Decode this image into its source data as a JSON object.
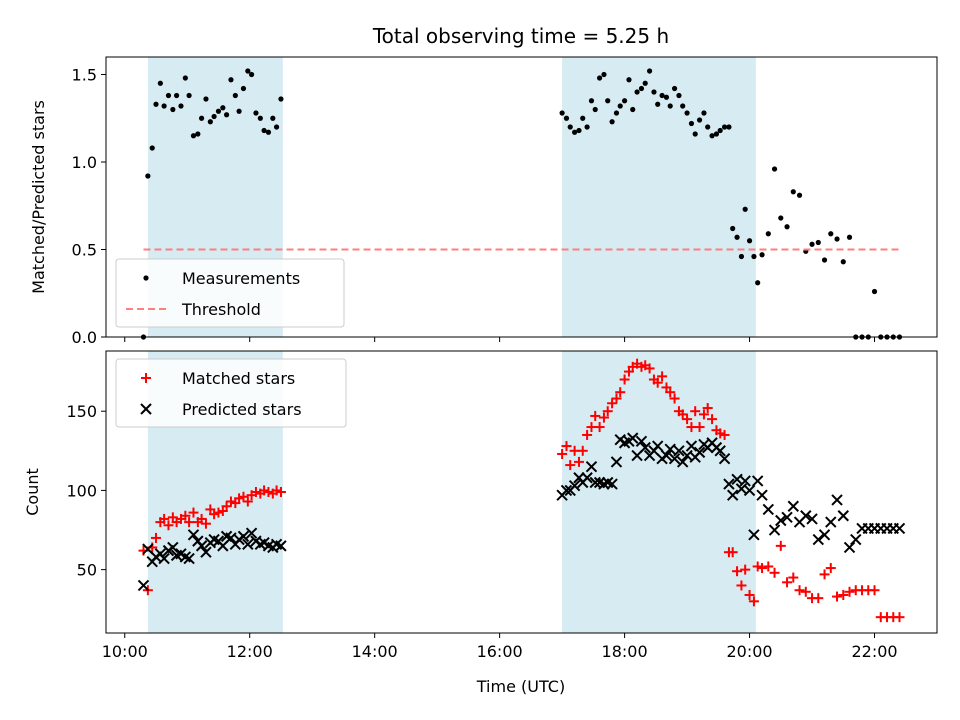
{
  "chart_data": {
    "type": "scatter",
    "title": "Total observing time = 5.25 h",
    "xlabel": "Time (UTC)",
    "xlim": [
      9.7,
      23.0
    ],
    "x_ticks": [
      10,
      12,
      14,
      16,
      18,
      20,
      22
    ],
    "x_tick_labels": [
      "10:00",
      "12:00",
      "14:00",
      "16:00",
      "18:00",
      "20:00",
      "22:00"
    ],
    "shaded_intervals": [
      [
        10.37,
        12.53
      ],
      [
        17.0,
        20.1
      ]
    ],
    "shade_color": "#add8e6",
    "panels": [
      {
        "name": "ratio",
        "ylabel": "Matched/Predicted stars",
        "ylim": [
          0.0,
          1.6
        ],
        "y_ticks": [
          0.0,
          0.5,
          1.0,
          1.5
        ],
        "y_tick_labels": [
          "0.0",
          "0.5",
          "1.0",
          "1.5"
        ],
        "legend": {
          "location": "lower-left"
        },
        "series": [
          {
            "name": "Measurements",
            "marker": "dot",
            "color": "#000000",
            "x": [
              10.3,
              10.37,
              10.44,
              10.5,
              10.57,
              10.63,
              10.7,
              10.77,
              10.83,
              10.9,
              10.97,
              11.03,
              11.1,
              11.17,
              11.23,
              11.3,
              11.37,
              11.43,
              11.5,
              11.57,
              11.63,
              11.7,
              11.77,
              11.83,
              11.9,
              11.97,
              12.03,
              12.1,
              12.17,
              12.23,
              12.3,
              12.37,
              12.43,
              12.5,
              17.0,
              17.07,
              17.13,
              17.2,
              17.27,
              17.33,
              17.4,
              17.47,
              17.53,
              17.6,
              17.67,
              17.73,
              17.8,
              17.87,
              17.93,
              18.0,
              18.07,
              18.13,
              18.2,
              18.27,
              18.33,
              18.4,
              18.47,
              18.53,
              18.6,
              18.67,
              18.73,
              18.8,
              18.87,
              18.93,
              19.0,
              19.07,
              19.13,
              19.2,
              19.27,
              19.33,
              19.4,
              19.47,
              19.53,
              19.6,
              19.67,
              19.73,
              19.8,
              19.87,
              19.93,
              20.0,
              20.07,
              20.13,
              20.2,
              20.3,
              20.4,
              20.5,
              20.6,
              20.7,
              20.8,
              20.9,
              21.0,
              21.1,
              21.2,
              21.3,
              21.4,
              21.5,
              21.6,
              21.7,
              21.8,
              21.9,
              22.0,
              22.1,
              22.2,
              22.3,
              22.4
            ],
            "y": [
              0.0,
              0.92,
              1.08,
              1.33,
              1.45,
              1.32,
              1.38,
              1.3,
              1.38,
              1.32,
              1.48,
              1.38,
              1.15,
              1.16,
              1.25,
              1.36,
              1.23,
              1.26,
              1.29,
              1.31,
              1.27,
              1.47,
              1.38,
              1.29,
              1.42,
              1.52,
              1.5,
              1.28,
              1.25,
              1.18,
              1.17,
              1.25,
              1.2,
              1.36,
              1.28,
              1.25,
              1.2,
              1.17,
              1.18,
              1.25,
              1.2,
              1.35,
              1.3,
              1.48,
              1.5,
              1.35,
              1.23,
              1.28,
              1.32,
              1.35,
              1.47,
              1.3,
              1.4,
              1.42,
              1.45,
              1.52,
              1.4,
              1.33,
              1.38,
              1.37,
              1.32,
              1.42,
              1.38,
              1.32,
              1.28,
              1.22,
              1.16,
              1.24,
              1.28,
              1.2,
              1.15,
              1.16,
              1.18,
              1.2,
              1.2,
              0.62,
              0.57,
              0.46,
              0.73,
              0.55,
              0.46,
              0.31,
              0.47,
              0.59,
              0.96,
              0.68,
              0.63,
              0.83,
              0.81,
              0.49,
              0.53,
              0.54,
              0.44,
              0.59,
              0.56,
              0.43,
              0.57,
              0.0,
              0.0,
              0.0,
              0.26,
              0.0,
              0.0,
              0.0,
              0.0
            ]
          },
          {
            "name": "Threshold",
            "marker": "dashed-line",
            "color": "#ff7f7f",
            "x": [
              10.3,
              22.4
            ],
            "y": [
              0.5,
              0.5
            ]
          }
        ]
      },
      {
        "name": "counts",
        "ylabel": "Count",
        "ylim": [
          10,
          188
        ],
        "y_ticks": [
          50,
          100,
          150
        ],
        "y_tick_labels": [
          "50",
          "100",
          "150"
        ],
        "legend": {
          "location": "upper-left"
        },
        "series": [
          {
            "name": "Matched stars",
            "marker": "plus",
            "color": "#ff0000",
            "x": [
              10.3,
              10.37,
              10.44,
              10.5,
              10.57,
              10.63,
              10.7,
              10.77,
              10.83,
              10.9,
              10.97,
              11.03,
              11.1,
              11.17,
              11.23,
              11.3,
              11.37,
              11.43,
              11.5,
              11.57,
              11.63,
              11.7,
              11.77,
              11.83,
              11.9,
              11.97,
              12.03,
              12.1,
              12.17,
              12.23,
              12.3,
              12.37,
              12.43,
              12.5,
              17.0,
              17.07,
              17.13,
              17.2,
              17.27,
              17.33,
              17.4,
              17.47,
              17.53,
              17.6,
              17.67,
              17.73,
              17.8,
              17.87,
              17.93,
              18.0,
              18.07,
              18.13,
              18.2,
              18.27,
              18.33,
              18.4,
              18.47,
              18.53,
              18.6,
              18.67,
              18.73,
              18.8,
              18.87,
              18.93,
              19.0,
              19.07,
              19.13,
              19.2,
              19.27,
              19.33,
              19.4,
              19.47,
              19.53,
              19.6,
              19.67,
              19.73,
              19.8,
              19.87,
              19.93,
              20.0,
              20.07,
              20.13,
              20.2,
              20.3,
              20.4,
              20.5,
              20.6,
              20.7,
              20.8,
              20.9,
              21.0,
              21.1,
              21.2,
              21.3,
              21.4,
              21.5,
              21.6,
              21.7,
              21.8,
              21.9,
              22.0,
              22.1,
              22.2,
              22.3,
              22.4
            ],
            "y": [
              62,
              37,
              64,
              70,
              80,
              82,
              78,
              83,
              80,
              82,
              84,
              80,
              86,
              80,
              82,
              79,
              88,
              85,
              86,
              87,
              90,
              93,
              92,
              95,
              96,
              93,
              97,
              99,
              98,
              100,
              99,
              98,
              100,
              99,
              123,
              128,
              116,
              125,
              118,
              125,
              135,
              140,
              147,
              140,
              146,
              150,
              155,
              158,
              162,
              170,
              175,
              178,
              180,
              178,
              179,
              177,
              170,
              168,
              172,
              165,
              162,
              158,
              150,
              148,
              145,
              140,
              150,
              140,
              148,
              152,
              145,
              138,
              136,
              135,
              61,
              61,
              49,
              40,
              50,
              34,
              30,
              52,
              51,
              52,
              48,
              65,
              42,
              45,
              37,
              36,
              32,
              32,
              47,
              51,
              33,
              34,
              36,
              37,
              37,
              37,
              37,
              20,
              20,
              20,
              20
            ]
          },
          {
            "name": "Predicted stars",
            "marker": "x",
            "color": "#000000",
            "x": [
              10.3,
              10.37,
              10.44,
              10.5,
              10.57,
              10.63,
              10.7,
              10.77,
              10.83,
              10.9,
              10.97,
              11.03,
              11.1,
              11.17,
              11.23,
              11.3,
              11.37,
              11.43,
              11.5,
              11.57,
              11.63,
              11.7,
              11.77,
              11.83,
              11.9,
              11.97,
              12.03,
              12.1,
              12.17,
              12.23,
              12.3,
              12.37,
              12.43,
              12.5,
              17.0,
              17.07,
              17.13,
              17.2,
              17.27,
              17.33,
              17.4,
              17.47,
              17.53,
              17.6,
              17.67,
              17.73,
              17.8,
              17.87,
              17.93,
              18.0,
              18.07,
              18.13,
              18.2,
              18.27,
              18.33,
              18.4,
              18.47,
              18.53,
              18.6,
              18.67,
              18.73,
              18.8,
              18.87,
              18.93,
              19.0,
              19.07,
              19.13,
              19.2,
              19.27,
              19.33,
              19.4,
              19.47,
              19.53,
              19.6,
              19.67,
              19.73,
              19.8,
              19.87,
              19.93,
              20.0,
              20.07,
              20.13,
              20.2,
              20.3,
              20.4,
              20.5,
              20.6,
              20.7,
              20.8,
              20.9,
              21.0,
              21.1,
              21.2,
              21.3,
              21.4,
              21.5,
              21.6,
              21.7,
              21.8,
              21.9,
              22.0,
              22.1,
              22.2,
              22.3,
              22.4
            ],
            "y": [
              40,
              63,
              55,
              58,
              60,
              57,
              62,
              64,
              59,
              60,
              58,
              57,
              72,
              68,
              65,
              61,
              67,
              69,
              68,
              65,
              71,
              70,
              66,
              69,
              71,
              66,
              73,
              68,
              66,
              67,
              65,
              64,
              66,
              65,
              97,
              100,
              100,
              103,
              108,
              105,
              108,
              115,
              105,
              105,
              104,
              105,
              104,
              118,
              132,
              130,
              131,
              133,
              122,
              131,
              127,
              122,
              125,
              128,
              120,
              122,
              126,
              120,
              125,
              118,
              122,
              128,
              121,
              124,
              129,
              127,
              130,
              127,
              125,
              120,
              104,
              97,
              107,
              101,
              106,
              100,
              72,
              106,
              97,
              88,
              75,
              81,
              83,
              90,
              80,
              84,
              82,
              69,
              72,
              80,
              94,
              84,
              64,
              69,
              76,
              76,
              76,
              76,
              76,
              76,
              76
            ]
          }
        ]
      }
    ]
  }
}
